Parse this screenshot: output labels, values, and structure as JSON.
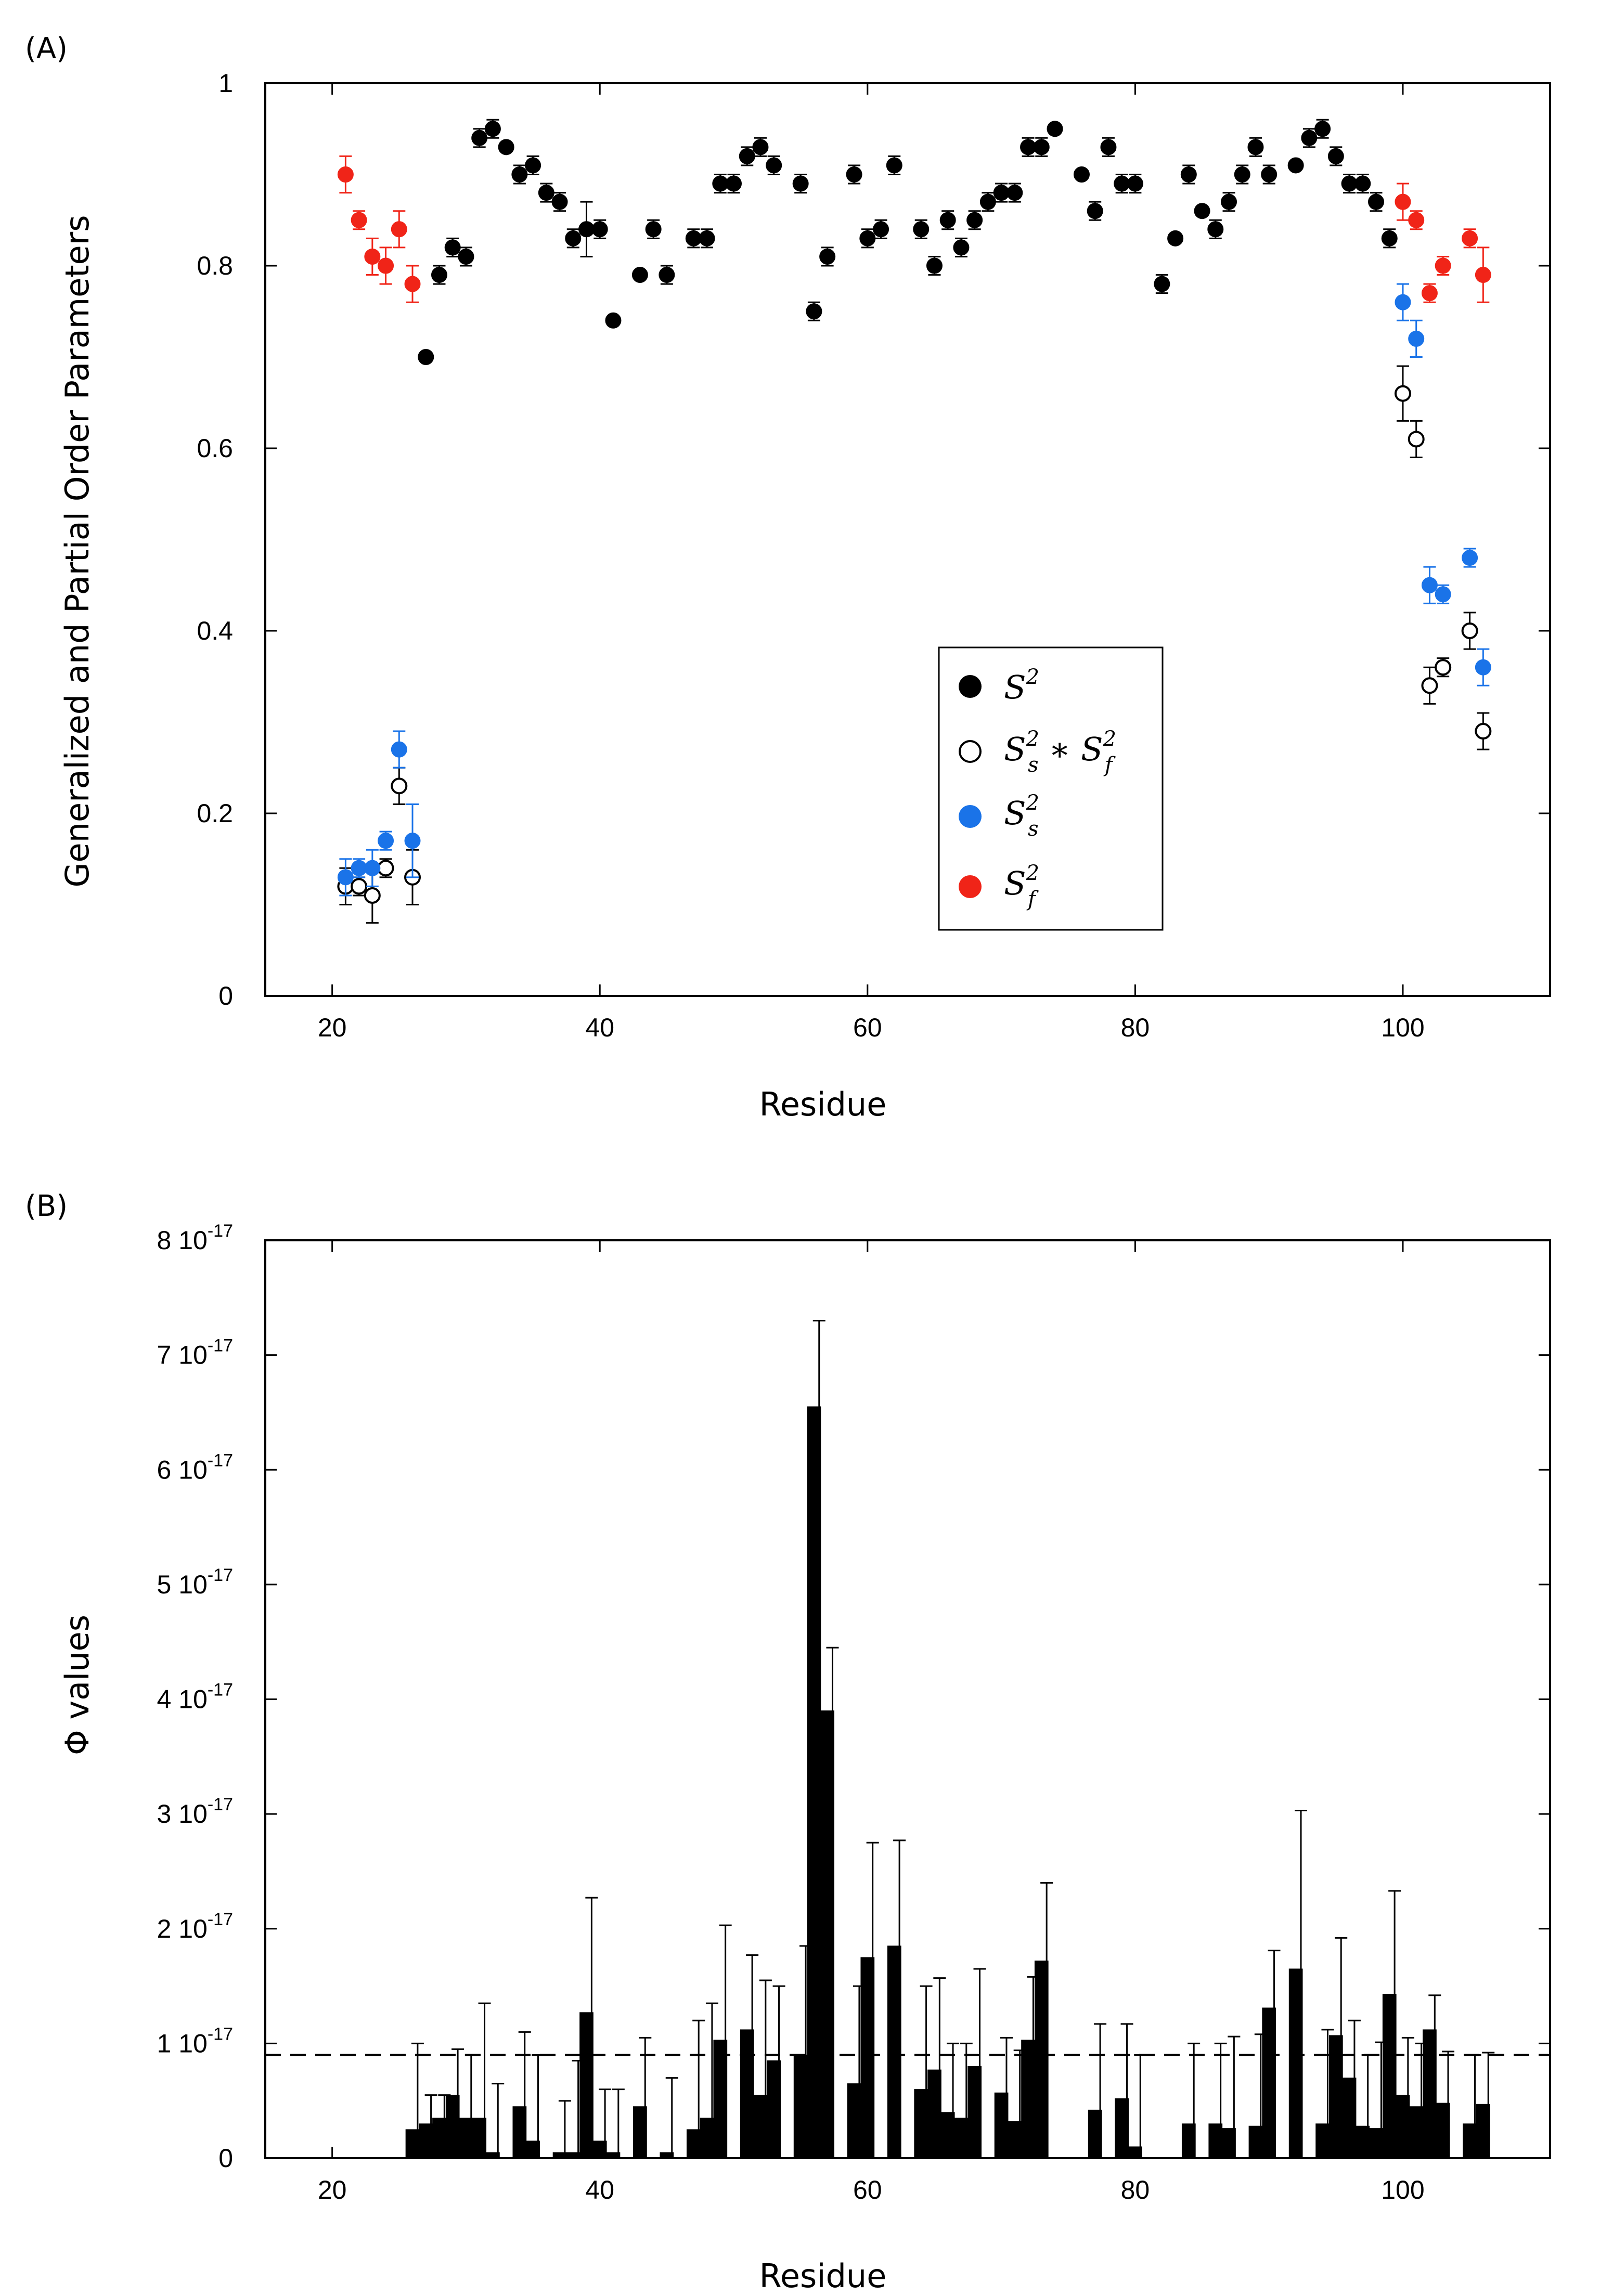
{
  "chart_data": [
    {
      "panel": "(A)",
      "type": "scatter",
      "xlabel": "Residue",
      "ylabel": "Generalized and Partial Order Parameters",
      "xlim": [
        15,
        111
      ],
      "ylim": [
        0,
        1
      ],
      "xticks": [
        "20",
        "40",
        "60",
        "80",
        "100"
      ],
      "yticks": [
        "0",
        "0.2",
        "0.4",
        "0.6",
        "0.8",
        "1"
      ],
      "legend": {
        "position": "center-right",
        "entries": [
          {
            "key": "S2",
            "text": "S",
            "sup": "2",
            "marker": "filled-black"
          },
          {
            "key": "S2s_S2f",
            "text": "S",
            "sub1": "s",
            "sup1": "2",
            "op": " ∗ ",
            "text2": "S",
            "sub2": "f",
            "sup2": "2",
            "marker": "open-circle"
          },
          {
            "key": "S2s",
            "text": "S",
            "sub": "s",
            "sup": "2",
            "marker": "filled-blue"
          },
          {
            "key": "S2f",
            "text": "S",
            "sub": "f",
            "sup": "2",
            "marker": "filled-red"
          }
        ]
      },
      "colors": {
        "S2": "#000000",
        "S2s": "#1a73e8",
        "S2f": "#f02418",
        "open": "#000000"
      },
      "series": [
        {
          "name": "S2",
          "points": [
            [
              27,
              0.7,
              0
            ],
            [
              28,
              0.79,
              0.01
            ],
            [
              29,
              0.82,
              0.01
            ],
            [
              30,
              0.81,
              0.01
            ],
            [
              31,
              0.94,
              0.01
            ],
            [
              32,
              0.95,
              0.01
            ],
            [
              33,
              0.93,
              0
            ],
            [
              34,
              0.9,
              0.01
            ],
            [
              35,
              0.91,
              0.01
            ],
            [
              36,
              0.88,
              0.01
            ],
            [
              37,
              0.87,
              0.01
            ],
            [
              38,
              0.83,
              0.01
            ],
            [
              39,
              0.84,
              0.03
            ],
            [
              40,
              0.84,
              0.01
            ],
            [
              41,
              0.74,
              0
            ],
            [
              43,
              0.79,
              0
            ],
            [
              44,
              0.84,
              0.01
            ],
            [
              45,
              0.79,
              0.01
            ],
            [
              47,
              0.83,
              0.01
            ],
            [
              48,
              0.83,
              0.01
            ],
            [
              49,
              0.89,
              0.01
            ],
            [
              50,
              0.89,
              0.01
            ],
            [
              51,
              0.92,
              0.01
            ],
            [
              52,
              0.93,
              0.01
            ],
            [
              53,
              0.91,
              0.01
            ],
            [
              55,
              0.89,
              0.01
            ],
            [
              56,
              0.75,
              0.01
            ],
            [
              57,
              0.81,
              0.01
            ],
            [
              59,
              0.9,
              0.01
            ],
            [
              60,
              0.83,
              0.01
            ],
            [
              61,
              0.84,
              0.01
            ],
            [
              62,
              0.91,
              0.01
            ],
            [
              64,
              0.84,
              0.01
            ],
            [
              65,
              0.8,
              0.01
            ],
            [
              66,
              0.85,
              0.01
            ],
            [
              67,
              0.82,
              0.01
            ],
            [
              68,
              0.85,
              0.01
            ],
            [
              69,
              0.87,
              0.01
            ],
            [
              70,
              0.88,
              0.01
            ],
            [
              71,
              0.88,
              0.01
            ],
            [
              72,
              0.93,
              0.01
            ],
            [
              73,
              0.93,
              0.01
            ],
            [
              74,
              0.95,
              0
            ],
            [
              76,
              0.9,
              0
            ],
            [
              77,
              0.86,
              0.01
            ],
            [
              78,
              0.93,
              0.01
            ],
            [
              79,
              0.89,
              0.01
            ],
            [
              80,
              0.89,
              0.01
            ],
            [
              82,
              0.78,
              0.01
            ],
            [
              83,
              0.83,
              0
            ],
            [
              84,
              0.9,
              0.01
            ],
            [
              85,
              0.86,
              0
            ],
            [
              86,
              0.84,
              0.01
            ],
            [
              87,
              0.87,
              0.01
            ],
            [
              88,
              0.9,
              0.01
            ],
            [
              89,
              0.93,
              0.01
            ],
            [
              90,
              0.9,
              0.01
            ],
            [
              92,
              0.91,
              0
            ],
            [
              93,
              0.94,
              0.01
            ],
            [
              94,
              0.95,
              0.01
            ],
            [
              95,
              0.92,
              0.01
            ],
            [
              96,
              0.89,
              0.01
            ],
            [
              97,
              0.89,
              0.01
            ],
            [
              98,
              0.87,
              0.01
            ],
            [
              99,
              0.83,
              0.01
            ]
          ]
        },
        {
          "name": "S2s*S2f",
          "points": [
            [
              21,
              0.12,
              0.02
            ],
            [
              22,
              0.12,
              0.01
            ],
            [
              23,
              0.11,
              0.03
            ],
            [
              24,
              0.14,
              0.01
            ],
            [
              25,
              0.23,
              0.02
            ],
            [
              26,
              0.13,
              0.03
            ],
            [
              100,
              0.66,
              0.03
            ],
            [
              101,
              0.61,
              0.02
            ],
            [
              102,
              0.34,
              0.02
            ],
            [
              103,
              0.36,
              0.01
            ],
            [
              105,
              0.4,
              0.02
            ],
            [
              106,
              0.29,
              0.02
            ]
          ]
        },
        {
          "name": "S2s",
          "points": [
            [
              21,
              0.13,
              0.02
            ],
            [
              22,
              0.14,
              0.01
            ],
            [
              23,
              0.14,
              0.02
            ],
            [
              24,
              0.17,
              0.01
            ],
            [
              25,
              0.27,
              0.02
            ],
            [
              26,
              0.17,
              0.04
            ],
            [
              100,
              0.76,
              0.02
            ],
            [
              101,
              0.72,
              0.02
            ],
            [
              102,
              0.45,
              0.02
            ],
            [
              103,
              0.44,
              0.01
            ],
            [
              105,
              0.48,
              0.01
            ],
            [
              106,
              0.36,
              0.02
            ]
          ]
        },
        {
          "name": "S2f",
          "points": [
            [
              21,
              0.9,
              0.02
            ],
            [
              22,
              0.85,
              0.01
            ],
            [
              23,
              0.81,
              0.02
            ],
            [
              24,
              0.8,
              0.02
            ],
            [
              25,
              0.84,
              0.02
            ],
            [
              26,
              0.78,
              0.02
            ],
            [
              100,
              0.87,
              0.02
            ],
            [
              101,
              0.85,
              0.01
            ],
            [
              102,
              0.77,
              0.01
            ],
            [
              103,
              0.8,
              0.01
            ],
            [
              105,
              0.83,
              0.01
            ],
            [
              106,
              0.79,
              0.03
            ]
          ]
        }
      ]
    },
    {
      "panel": "(B)",
      "type": "bar",
      "xlabel": "Residue",
      "ylabel": "Φ values",
      "xlim": [
        15,
        111
      ],
      "ylim": [
        0,
        8e-17
      ],
      "xticks": [
        "20",
        "40",
        "60",
        "80",
        "100"
      ],
      "yticks": [
        {
          "mant": "0",
          "exp": ""
        },
        {
          "mant": "1 10",
          "exp": "-17"
        },
        {
          "mant": "2 10",
          "exp": "-17"
        },
        {
          "mant": "3 10",
          "exp": "-17"
        },
        {
          "mant": "4 10",
          "exp": "-17"
        },
        {
          "mant": "5 10",
          "exp": "-17"
        },
        {
          "mant": "6 10",
          "exp": "-17"
        },
        {
          "mant": "7 10",
          "exp": "-17"
        },
        {
          "mant": "8 10",
          "exp": "-17"
        }
      ],
      "unit": 1e-17,
      "threshold": 0.9,
      "bars": [
        [
          26,
          0.25,
          0.75
        ],
        [
          27,
          0.3,
          0.25
        ],
        [
          28,
          0.35,
          0.2
        ],
        [
          29,
          0.55,
          0.4
        ],
        [
          30,
          0.35,
          0.55
        ],
        [
          31,
          0.35,
          1.0
        ],
        [
          32,
          0.05,
          0.6
        ],
        [
          34,
          0.45,
          0.65
        ],
        [
          35,
          0.15,
          0.75
        ],
        [
          37,
          0.05,
          0.45
        ],
        [
          38,
          0.05,
          0.8
        ],
        [
          39,
          1.27,
          1.0
        ],
        [
          40,
          0.15,
          0.45
        ],
        [
          41,
          0.05,
          0.55
        ],
        [
          43,
          0.45,
          0.6
        ],
        [
          45,
          0.05,
          0.65
        ],
        [
          47,
          0.25,
          0.95
        ],
        [
          48,
          0.35,
          1.0
        ],
        [
          49,
          1.03,
          1.0
        ],
        [
          51,
          1.12,
          0.65
        ],
        [
          52,
          0.55,
          1.0
        ],
        [
          53,
          0.85,
          0.65
        ],
        [
          55,
          0.9,
          0.95
        ],
        [
          56,
          6.55,
          0.75
        ],
        [
          57,
          3.9,
          0.55
        ],
        [
          59,
          0.65,
          0.85
        ],
        [
          60,
          1.75,
          1.0
        ],
        [
          62,
          1.85,
          0.92
        ],
        [
          64,
          0.6,
          0.9
        ],
        [
          65,
          0.77,
          0.8
        ],
        [
          66,
          0.4,
          0.6
        ],
        [
          67,
          0.35,
          0.65
        ],
        [
          68,
          0.8,
          0.85
        ],
        [
          70,
          0.57,
          0.48
        ],
        [
          71,
          0.32,
          0.62
        ],
        [
          72,
          1.03,
          0.55
        ],
        [
          73,
          1.72,
          0.68
        ],
        [
          77,
          0.42,
          0.75
        ],
        [
          79,
          0.52,
          0.65
        ],
        [
          80,
          0.1,
          0.8
        ],
        [
          84,
          0.3,
          0.7
        ],
        [
          86,
          0.3,
          0.7
        ],
        [
          87,
          0.26,
          0.8
        ],
        [
          89,
          0.28,
          0.8
        ],
        [
          90,
          1.31,
          0.5
        ],
        [
          92,
          1.65,
          1.38
        ],
        [
          94,
          0.3,
          0.82
        ],
        [
          95,
          1.07,
          0.85
        ],
        [
          96,
          0.7,
          0.5
        ],
        [
          97,
          0.28,
          0.62
        ],
        [
          98,
          0.26,
          0.75
        ],
        [
          99,
          1.43,
          0.9
        ],
        [
          100,
          0.55,
          0.5
        ],
        [
          101,
          0.45,
          0.55
        ],
        [
          102,
          1.12,
          0.3
        ],
        [
          103,
          0.48,
          0.45
        ],
        [
          105,
          0.3,
          0.6
        ],
        [
          106,
          0.47,
          0.45
        ]
      ]
    }
  ]
}
